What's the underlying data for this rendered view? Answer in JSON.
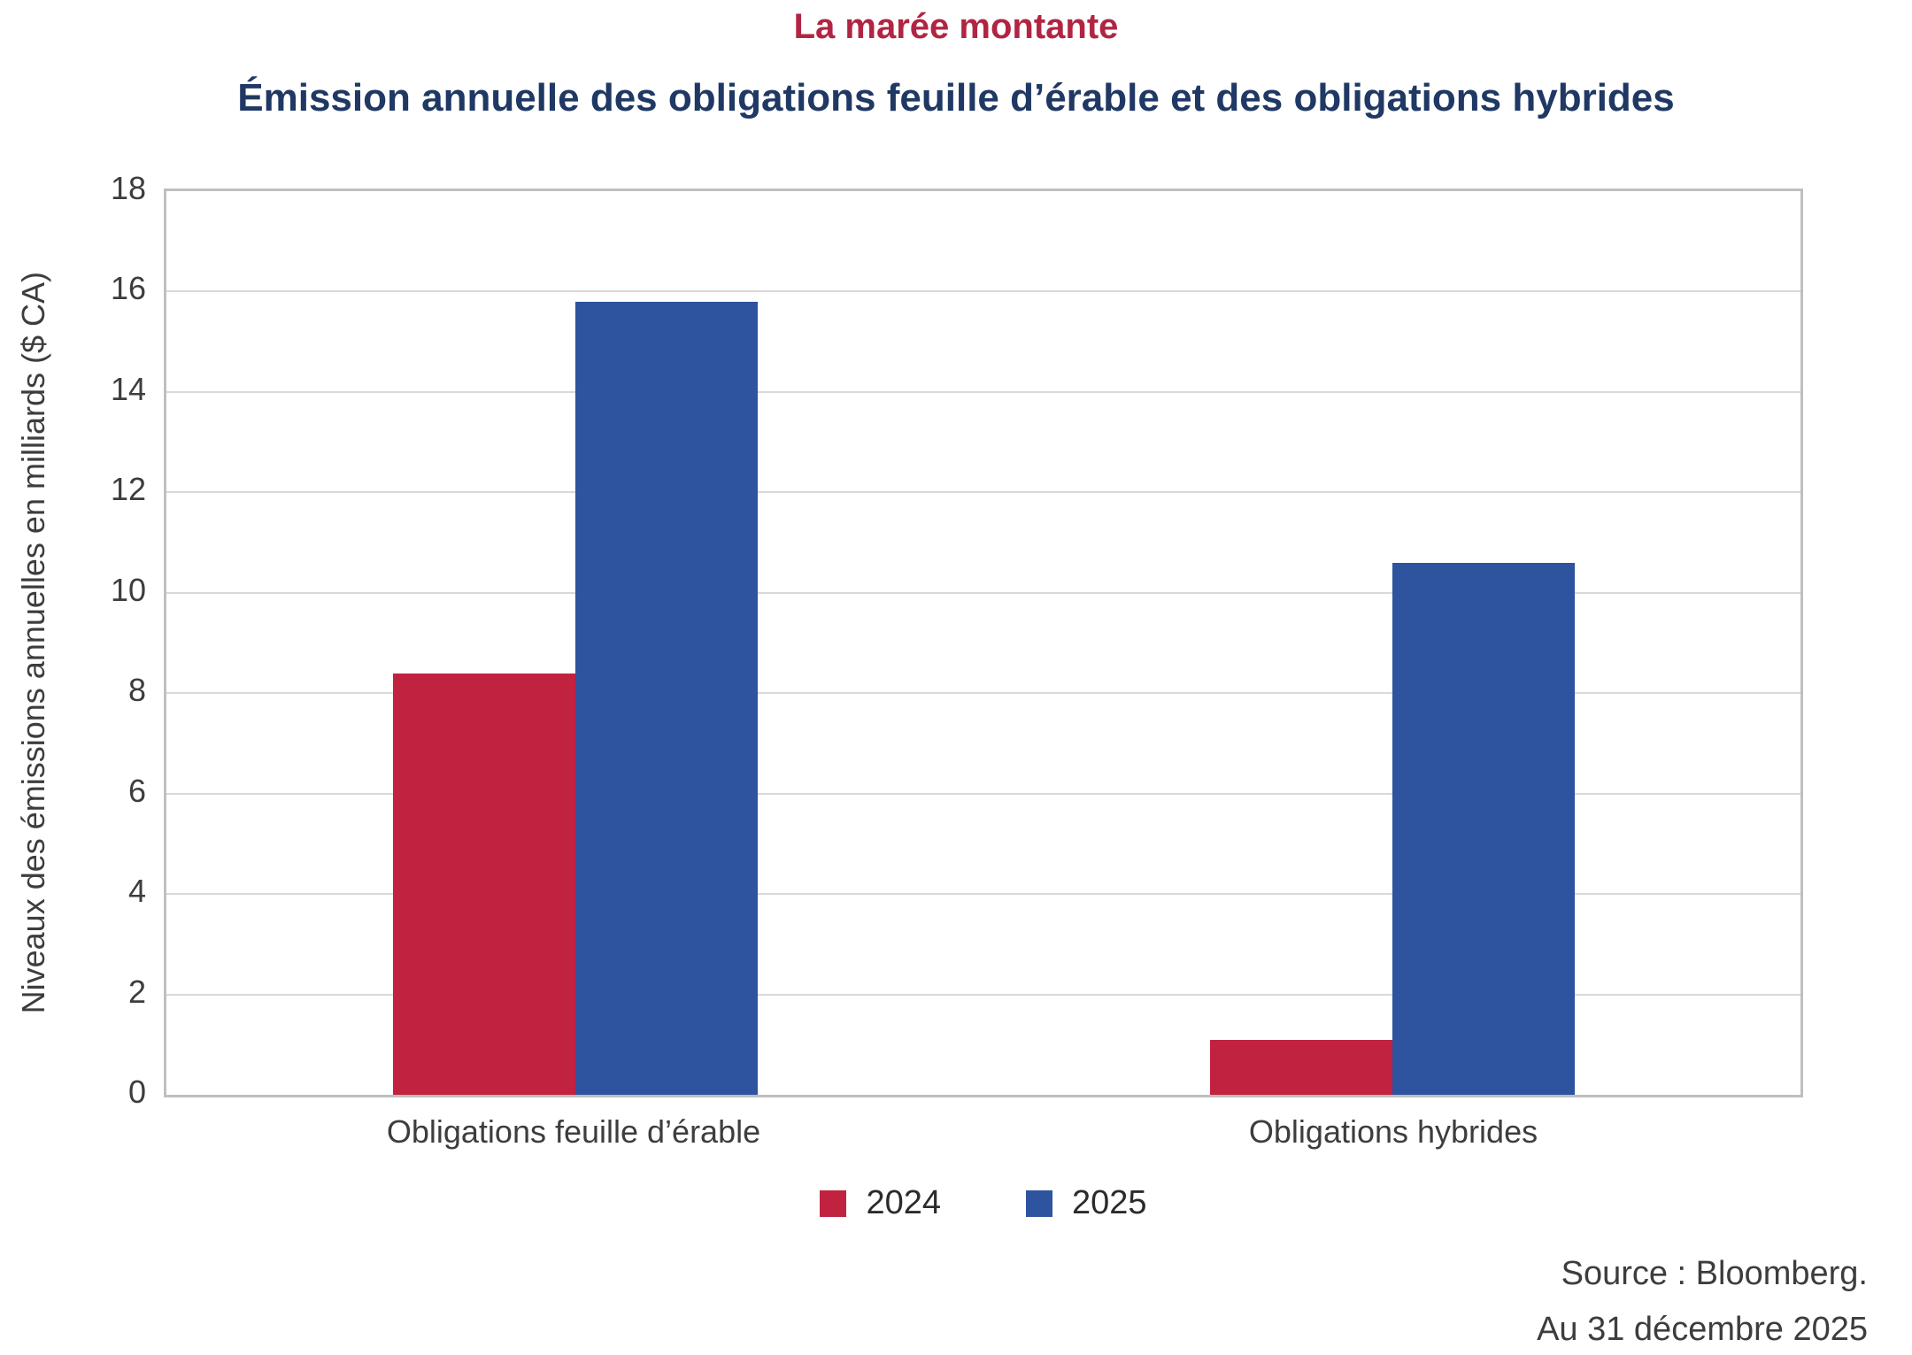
{
  "header": {
    "title": "La marée montante",
    "subtitle": "Émission annuelle des obligations feuille d’érable et des obligations hybrides"
  },
  "colors": {
    "title_red": "#B12542",
    "subtitle_navy": "#1F3864",
    "series_2024_red": "#C02240",
    "series_2025_blue": "#2E539F",
    "gridline_gray": "#D9D9D9",
    "plot_border_gray": "#BFBFBF",
    "text_gray": "#3d3d3d"
  },
  "chart_data": {
    "type": "bar",
    "title": "La marée montante",
    "subtitle": "Émission annuelle des obligations feuille d’érable et des obligations hybrides",
    "categories": [
      "Obligations feuille d’érable",
      "Obligations hybrides"
    ],
    "series": [
      {
        "name": "2024",
        "color": "#C02240",
        "values": [
          8.4,
          1.1
        ]
      },
      {
        "name": "2025",
        "color": "#2E539F",
        "values": [
          15.8,
          10.6
        ]
      }
    ],
    "xlabel": "",
    "ylabel": "Niveaux des émissions annuelles en milliards ($ CA)",
    "ylim": [
      0,
      18
    ],
    "ytick_step": 2,
    "yticks": [
      0,
      2,
      4,
      6,
      8,
      10,
      12,
      14,
      16,
      18
    ],
    "grid": "horizontal",
    "legend_position": "bottom"
  },
  "footer": {
    "source": "Source : Bloomberg.",
    "as_of": "Au 31 décembre 2025"
  }
}
